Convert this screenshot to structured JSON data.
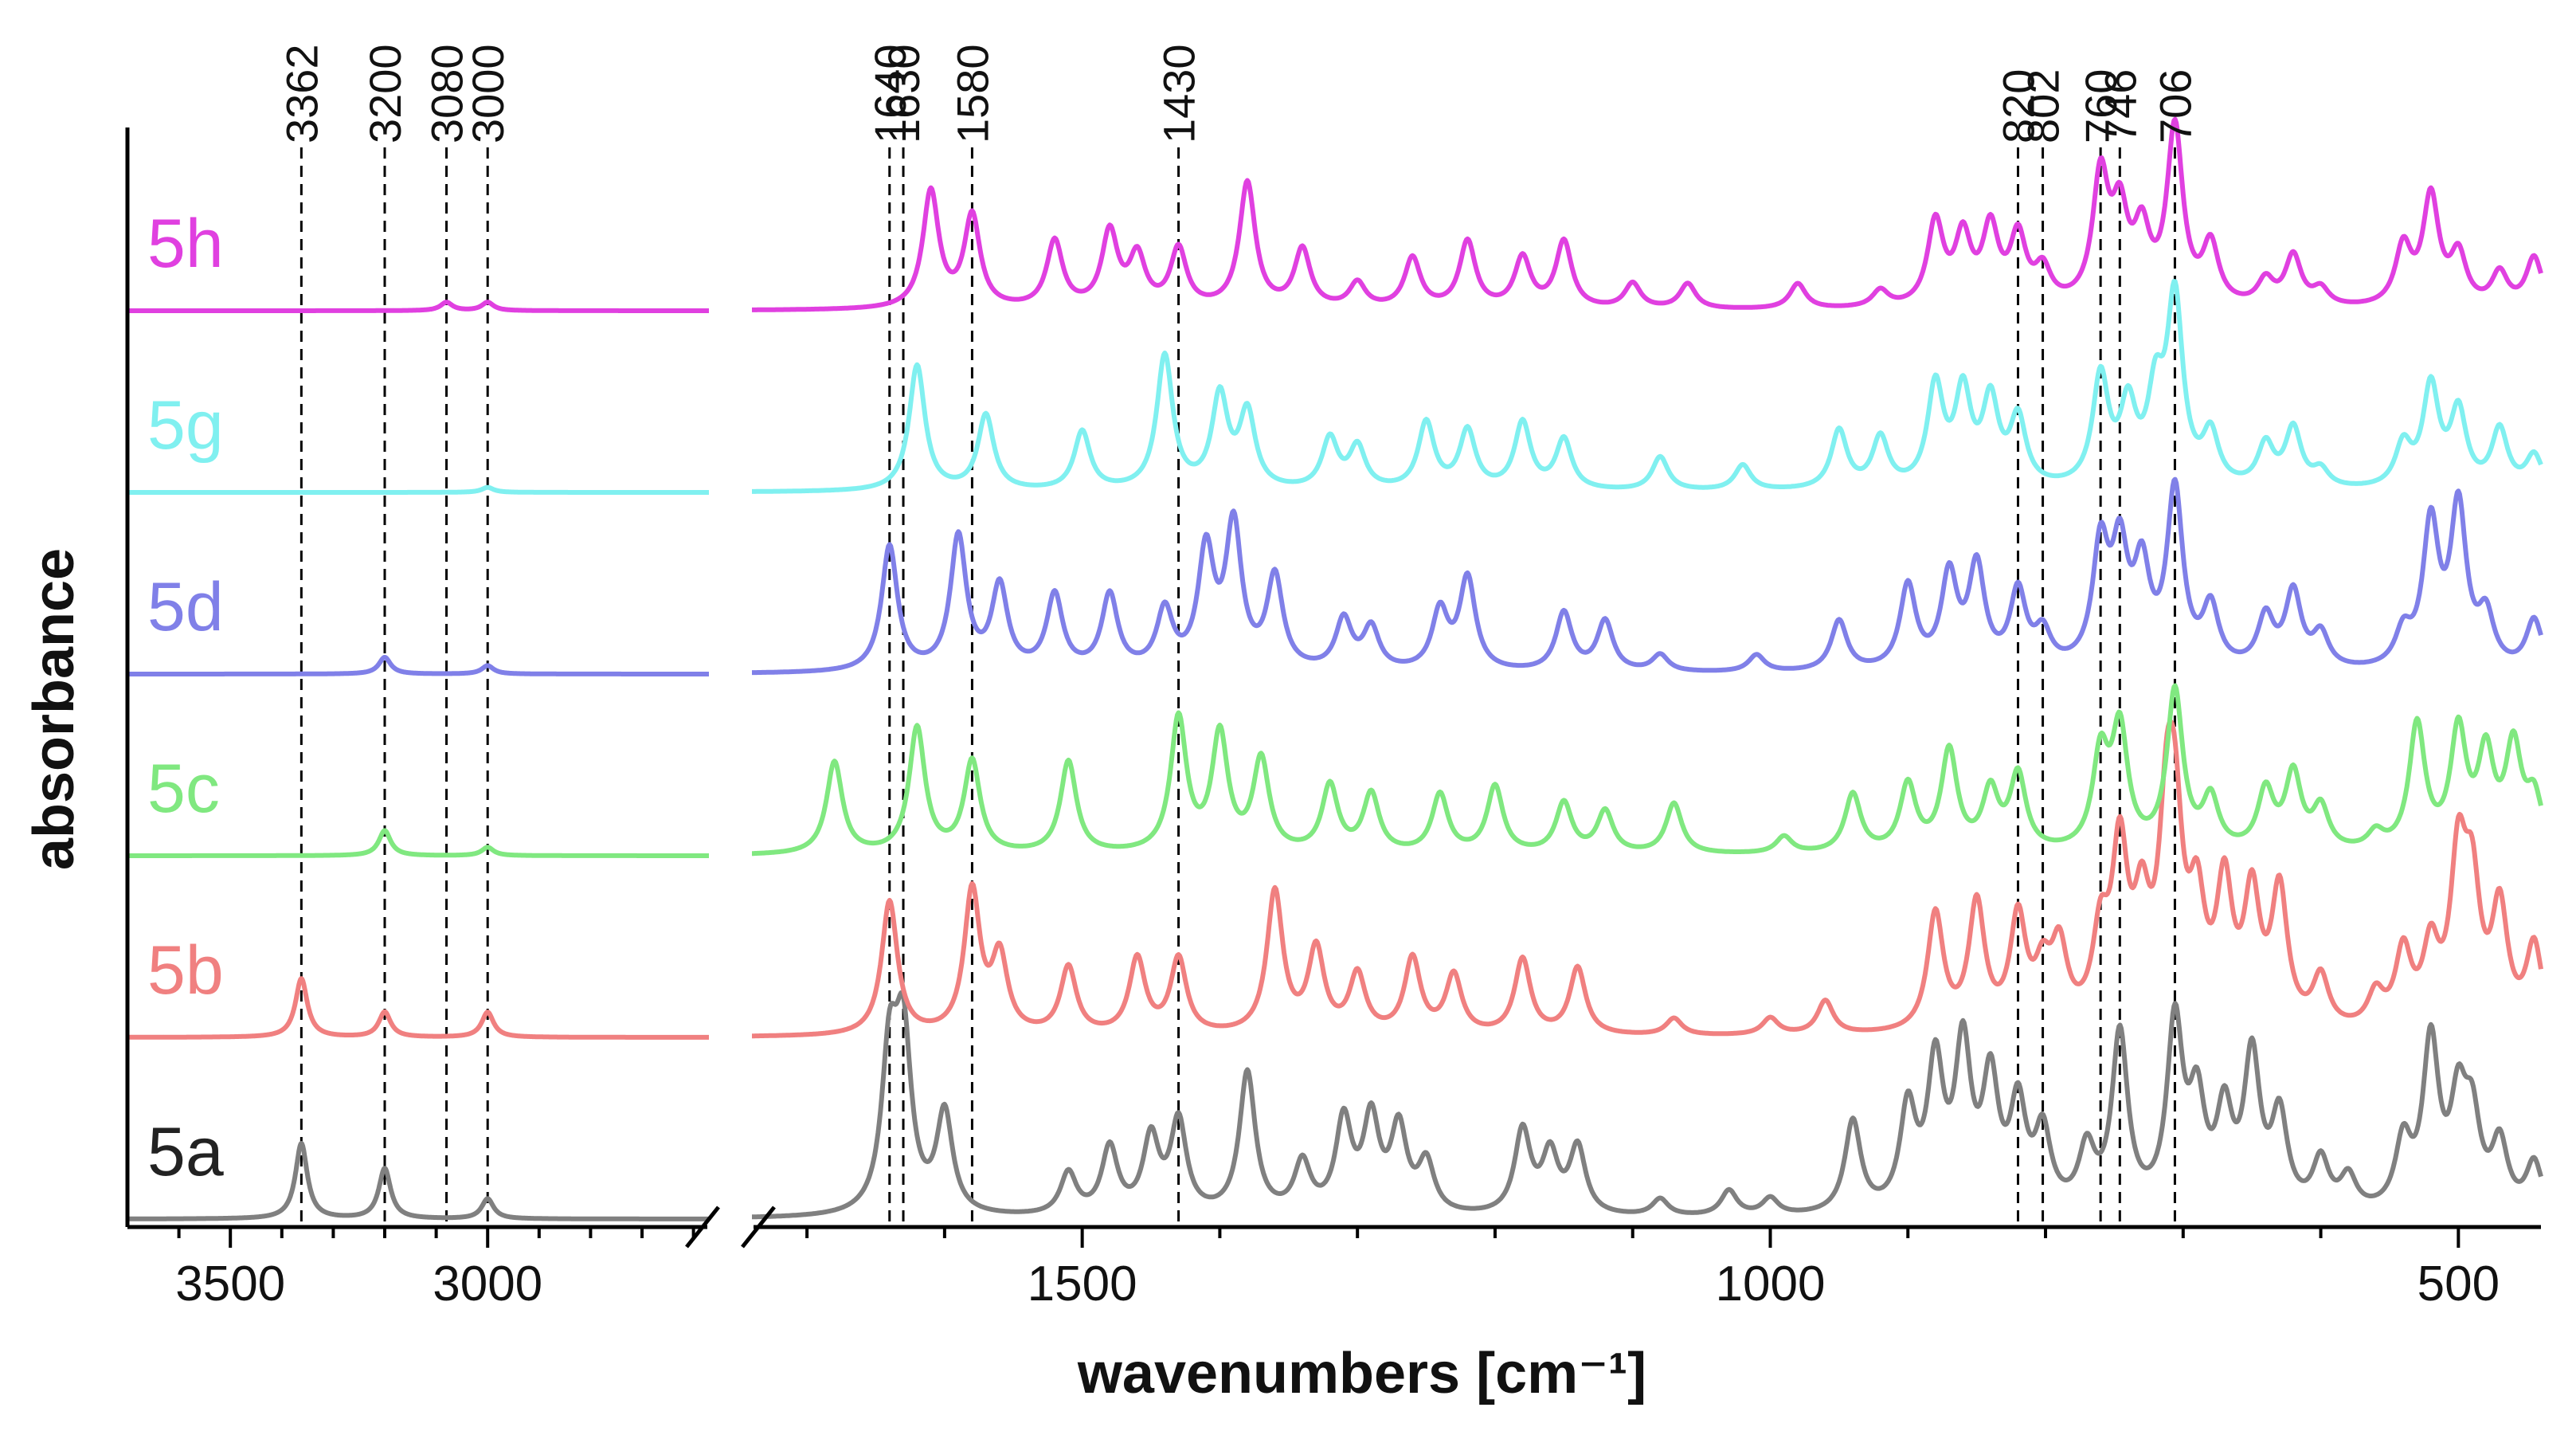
{
  "chart_data": {
    "type": "line",
    "xlabel": "wavenumbers [cm⁻¹]",
    "ylabel": "absorbance",
    "x_axis": {
      "reversed": true,
      "broken": true,
      "segments": [
        {
          "range": [
            3700,
            2570
          ]
        },
        {
          "range": [
            1740,
            440
          ]
        }
      ],
      "ticks": [
        3500,
        3000,
        1500,
        1000,
        500
      ]
    },
    "grid": false,
    "legend": "inline-left",
    "peak_markers": [
      3362,
      3200,
      3080,
      3000,
      1640,
      1630,
      1580,
      1430,
      820,
      802,
      760,
      746,
      706
    ],
    "series": [
      {
        "name": "5a",
        "color": "#808080",
        "offset": 0,
        "high": [
          [
            3362,
            0.45
          ],
          [
            3200,
            0.3
          ],
          [
            3000,
            0.12
          ]
        ],
        "low": [
          [
            1640,
            0.9
          ],
          [
            1630,
            1.0
          ],
          [
            1600,
            0.6
          ],
          [
            1510,
            0.25
          ],
          [
            1480,
            0.4
          ],
          [
            1450,
            0.45
          ],
          [
            1430,
            0.55
          ],
          [
            1380,
            0.85
          ],
          [
            1340,
            0.3
          ],
          [
            1310,
            0.55
          ],
          [
            1290,
            0.55
          ],
          [
            1270,
            0.5
          ],
          [
            1250,
            0.3
          ],
          [
            1180,
            0.5
          ],
          [
            1160,
            0.35
          ],
          [
            1140,
            0.4
          ],
          [
            1080,
            0.1
          ],
          [
            1030,
            0.15
          ],
          [
            1000,
            0.1
          ],
          [
            940,
            0.55
          ],
          [
            900,
            0.6
          ],
          [
            880,
            0.85
          ],
          [
            860,
            0.95
          ],
          [
            840,
            0.75
          ],
          [
            820,
            0.6
          ],
          [
            802,
            0.45
          ],
          [
            770,
            0.35
          ],
          [
            746,
            1.05
          ],
          [
            706,
            1.1
          ],
          [
            690,
            0.6
          ],
          [
            670,
            0.55
          ],
          [
            650,
            0.9
          ],
          [
            630,
            0.55
          ],
          [
            600,
            0.3
          ],
          [
            580,
            0.2
          ],
          [
            540,
            0.4
          ],
          [
            520,
            1.0
          ],
          [
            500,
            0.6
          ],
          [
            490,
            0.5
          ],
          [
            470,
            0.4
          ],
          [
            445,
            0.3
          ]
        ]
      },
      {
        "name": "5b",
        "color": "#f08080",
        "offset": 1,
        "high": [
          [
            3362,
            0.35
          ],
          [
            3200,
            0.15
          ],
          [
            3000,
            0.15
          ]
        ],
        "low": [
          [
            1640,
            0.8
          ],
          [
            1580,
            0.85
          ],
          [
            1560,
            0.45
          ],
          [
            1510,
            0.4
          ],
          [
            1460,
            0.45
          ],
          [
            1430,
            0.45
          ],
          [
            1360,
            0.85
          ],
          [
            1330,
            0.5
          ],
          [
            1300,
            0.35
          ],
          [
            1260,
            0.45
          ],
          [
            1230,
            0.35
          ],
          [
            1180,
            0.45
          ],
          [
            1140,
            0.4
          ],
          [
            1070,
            0.1
          ],
          [
            1000,
            0.1
          ],
          [
            960,
            0.2
          ],
          [
            880,
            0.7
          ],
          [
            850,
            0.75
          ],
          [
            820,
            0.65
          ],
          [
            802,
            0.3
          ],
          [
            790,
            0.45
          ],
          [
            760,
            0.5
          ],
          [
            746,
            1.0
          ],
          [
            730,
            0.6
          ],
          [
            712,
            1.0
          ],
          [
            706,
            0.95
          ],
          [
            690,
            0.65
          ],
          [
            670,
            0.8
          ],
          [
            650,
            0.75
          ],
          [
            630,
            0.8
          ],
          [
            600,
            0.3
          ],
          [
            560,
            0.2
          ],
          [
            540,
            0.45
          ],
          [
            520,
            0.45
          ],
          [
            500,
            0.95
          ],
          [
            490,
            0.75
          ],
          [
            470,
            0.7
          ],
          [
            445,
            0.5
          ]
        ]
      },
      {
        "name": "5c",
        "color": "#80e880",
        "offset": 2,
        "high": [
          [
            3200,
            0.15
          ],
          [
            3000,
            0.05
          ]
        ],
        "low": [
          [
            1680,
            0.55
          ],
          [
            1620,
            0.75
          ],
          [
            1580,
            0.55
          ],
          [
            1510,
            0.55
          ],
          [
            1430,
            0.8
          ],
          [
            1400,
            0.7
          ],
          [
            1370,
            0.55
          ],
          [
            1320,
            0.4
          ],
          [
            1290,
            0.35
          ],
          [
            1240,
            0.35
          ],
          [
            1200,
            0.4
          ],
          [
            1150,
            0.3
          ],
          [
            1120,
            0.25
          ],
          [
            1070,
            0.3
          ],
          [
            990,
            0.1
          ],
          [
            940,
            0.35
          ],
          [
            900,
            0.4
          ],
          [
            870,
            0.6
          ],
          [
            840,
            0.35
          ],
          [
            820,
            0.45
          ],
          [
            760,
            0.55
          ],
          [
            746,
            0.7
          ],
          [
            706,
            0.95
          ],
          [
            680,
            0.3
          ],
          [
            640,
            0.35
          ],
          [
            620,
            0.45
          ],
          [
            600,
            0.25
          ],
          [
            560,
            0.1
          ],
          [
            530,
            0.75
          ],
          [
            500,
            0.7
          ],
          [
            480,
            0.55
          ],
          [
            460,
            0.6
          ],
          [
            445,
            0.3
          ]
        ]
      },
      {
        "name": "5d",
        "color": "#8080e8",
        "offset": 3,
        "high": [
          [
            3200,
            0.1
          ],
          [
            3000,
            0.05
          ]
        ],
        "low": [
          [
            1640,
            0.75
          ],
          [
            1590,
            0.8
          ],
          [
            1560,
            0.5
          ],
          [
            1520,
            0.45
          ],
          [
            1480,
            0.45
          ],
          [
            1440,
            0.35
          ],
          [
            1410,
            0.7
          ],
          [
            1390,
            0.85
          ],
          [
            1360,
            0.55
          ],
          [
            1310,
            0.3
          ],
          [
            1290,
            0.25
          ],
          [
            1240,
            0.35
          ],
          [
            1220,
            0.55
          ],
          [
            1150,
            0.35
          ],
          [
            1120,
            0.3
          ],
          [
            1080,
            0.1
          ],
          [
            1010,
            0.1
          ],
          [
            950,
            0.3
          ],
          [
            900,
            0.5
          ],
          [
            870,
            0.55
          ],
          [
            850,
            0.6
          ],
          [
            820,
            0.45
          ],
          [
            802,
            0.2
          ],
          [
            760,
            0.7
          ],
          [
            746,
            0.65
          ],
          [
            730,
            0.55
          ],
          [
            706,
            1.05
          ],
          [
            680,
            0.35
          ],
          [
            640,
            0.3
          ],
          [
            620,
            0.45
          ],
          [
            600,
            0.2
          ],
          [
            540,
            0.2
          ],
          [
            520,
            0.85
          ],
          [
            500,
            0.95
          ],
          [
            480,
            0.3
          ],
          [
            445,
            0.3
          ]
        ]
      },
      {
        "name": "5g",
        "color": "#80f0f0",
        "offset": 4,
        "high": [
          [
            3000,
            0.03
          ]
        ],
        "low": [
          [
            1620,
            0.75
          ],
          [
            1570,
            0.45
          ],
          [
            1500,
            0.35
          ],
          [
            1440,
            0.8
          ],
          [
            1400,
            0.55
          ],
          [
            1380,
            0.45
          ],
          [
            1320,
            0.3
          ],
          [
            1300,
            0.25
          ],
          [
            1250,
            0.4
          ],
          [
            1220,
            0.35
          ],
          [
            1180,
            0.4
          ],
          [
            1150,
            0.3
          ],
          [
            1080,
            0.2
          ],
          [
            1020,
            0.15
          ],
          [
            950,
            0.35
          ],
          [
            920,
            0.3
          ],
          [
            880,
            0.6
          ],
          [
            860,
            0.55
          ],
          [
            840,
            0.5
          ],
          [
            820,
            0.4
          ],
          [
            760,
            0.65
          ],
          [
            740,
            0.45
          ],
          [
            720,
            0.5
          ],
          [
            706,
            1.1
          ],
          [
            680,
            0.3
          ],
          [
            640,
            0.25
          ],
          [
            620,
            0.35
          ],
          [
            600,
            0.1
          ],
          [
            540,
            0.25
          ],
          [
            520,
            0.6
          ],
          [
            500,
            0.45
          ],
          [
            470,
            0.35
          ],
          [
            445,
            0.2
          ]
        ]
      },
      {
        "name": "5h",
        "color": "#e040e0",
        "offset": 5,
        "high": [
          [
            3080,
            0.05
          ],
          [
            3000,
            0.05
          ]
        ],
        "low": [
          [
            1610,
            0.7
          ],
          [
            1580,
            0.55
          ],
          [
            1520,
            0.4
          ],
          [
            1480,
            0.45
          ],
          [
            1460,
            0.3
          ],
          [
            1430,
            0.35
          ],
          [
            1380,
            0.75
          ],
          [
            1340,
            0.35
          ],
          [
            1300,
            0.15
          ],
          [
            1260,
            0.3
          ],
          [
            1220,
            0.4
          ],
          [
            1180,
            0.3
          ],
          [
            1150,
            0.4
          ],
          [
            1100,
            0.15
          ],
          [
            1060,
            0.15
          ],
          [
            980,
            0.15
          ],
          [
            920,
            0.1
          ],
          [
            880,
            0.5
          ],
          [
            860,
            0.4
          ],
          [
            840,
            0.45
          ],
          [
            820,
            0.4
          ],
          [
            802,
            0.2
          ],
          [
            760,
            0.75
          ],
          [
            746,
            0.5
          ],
          [
            730,
            0.4
          ],
          [
            706,
            1.05
          ],
          [
            680,
            0.35
          ],
          [
            640,
            0.15
          ],
          [
            620,
            0.3
          ],
          [
            600,
            0.1
          ],
          [
            540,
            0.35
          ],
          [
            520,
            0.65
          ],
          [
            500,
            0.3
          ],
          [
            470,
            0.2
          ],
          [
            445,
            0.3
          ]
        ]
      }
    ]
  }
}
